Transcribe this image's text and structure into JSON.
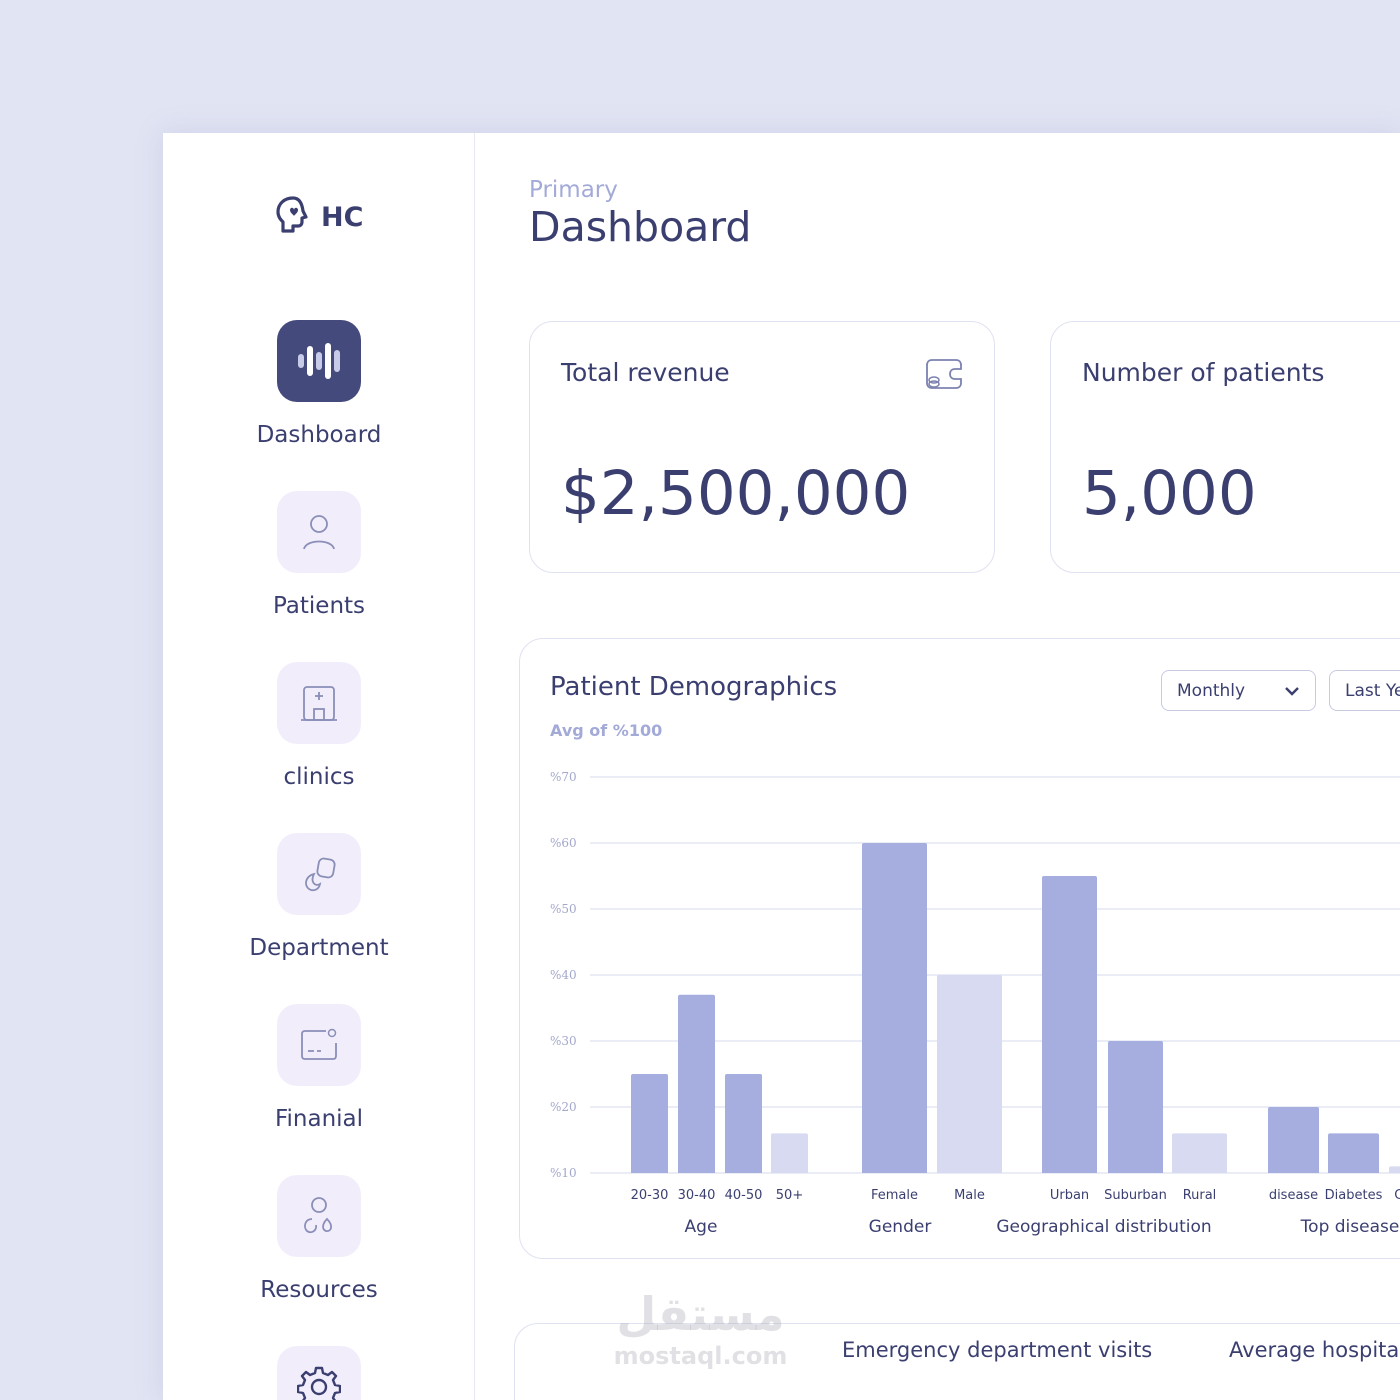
{
  "logo": {
    "text": "HC",
    "icon": "brain-heart-icon"
  },
  "sidebar": {
    "items": [
      {
        "label": "Dashboard",
        "icon": "waveform-icon",
        "active": true
      },
      {
        "label": "Patients",
        "icon": "user-icon",
        "active": false
      },
      {
        "label": "clinics",
        "icon": "hospital-icon",
        "active": false
      },
      {
        "label": "Department",
        "icon": "department-icon",
        "active": false
      },
      {
        "label": "Finanial",
        "icon": "finance-card-icon",
        "active": false
      },
      {
        "label": "Resources",
        "icon": "resources-icon",
        "active": false
      },
      {
        "label": "",
        "icon": "gear-icon",
        "active": false
      }
    ]
  },
  "header": {
    "breadcrumb": "Primary",
    "title": "Dashboard"
  },
  "stats": [
    {
      "title": "Total revenue",
      "value": "$2,500,000",
      "icon": "wallet-icon"
    },
    {
      "title": "Number of patients",
      "value": "5,000"
    }
  ],
  "demographics": {
    "title": "Patient Demographics",
    "subtitle": "Avg of %100",
    "filters": {
      "period": "Monthly",
      "range": "Last Ye"
    }
  },
  "chart_data": {
    "type": "bar",
    "ylim": [
      10,
      70
    ],
    "yticks": [
      "%70",
      "%60",
      "%50",
      "%40",
      "%30",
      "%20",
      "%10"
    ],
    "ytick_values": [
      70,
      60,
      50,
      40,
      30,
      20,
      10
    ],
    "grid": true,
    "groups": [
      {
        "label": "Age",
        "categories": [
          "20-30",
          "30-40",
          "40-50",
          "50+"
        ],
        "values": [
          25,
          37,
          25,
          16
        ],
        "shade": [
          "dark",
          "dark",
          "dark",
          "light"
        ]
      },
      {
        "label": "Gender",
        "categories": [
          "Female",
          "Male"
        ],
        "values": [
          60,
          40
        ],
        "shade": [
          "dark",
          "light"
        ]
      },
      {
        "label": "Geographical distribution",
        "categories": [
          "Urban",
          "Suburban",
          "Rural"
        ],
        "values": [
          55,
          30,
          16
        ],
        "shade": [
          "dark",
          "dark",
          "light"
        ]
      },
      {
        "label": "Top disease",
        "categories": [
          "disease",
          "Diabetes",
          "Cance"
        ],
        "values": [
          20,
          16,
          11
        ],
        "shade": [
          "dark",
          "dark",
          "light"
        ]
      }
    ],
    "colors": {
      "dark": "#a6aedf",
      "light": "#d7daf0",
      "grid": "#e3e6f3",
      "tick": "#a3a8cc"
    }
  },
  "bottom": {
    "labels": [
      "Emergency department visits",
      "Average hospita"
    ]
  },
  "watermark": {
    "arabic": "مستقل",
    "latin": "mostaql.com"
  }
}
